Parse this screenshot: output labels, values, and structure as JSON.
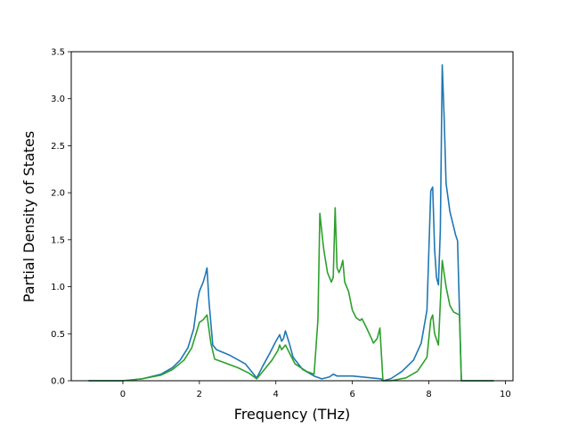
{
  "chart_data": {
    "type": "line",
    "title": "",
    "xlabel": "Frequency (THz)",
    "ylabel": "Partial Density of States",
    "xlim": [
      -1.35,
      10.2
    ],
    "ylim": [
      0,
      3.5
    ],
    "x_ticks": [
      0,
      2,
      4,
      6,
      8,
      10
    ],
    "y_ticks": [
      0.0,
      0.5,
      1.0,
      1.5,
      2.0,
      2.5,
      3.0,
      3.5
    ],
    "x_tick_labels": [
      "0",
      "2",
      "4",
      "6",
      "8",
      "10"
    ],
    "y_tick_labels": [
      "0.0",
      "0.5",
      "1.0",
      "1.5",
      "2.0",
      "2.5",
      "3.0",
      "3.5"
    ],
    "grid": false,
    "legend": "none",
    "series": [
      {
        "color": "#1f77b4",
        "points": [
          [
            -0.9,
            0
          ],
          [
            0.0,
            0.0
          ],
          [
            0.5,
            0.02
          ],
          [
            1.0,
            0.07
          ],
          [
            1.3,
            0.14
          ],
          [
            1.5,
            0.22
          ],
          [
            1.7,
            0.35
          ],
          [
            1.85,
            0.55
          ],
          [
            1.95,
            0.85
          ],
          [
            2.0,
            0.95
          ],
          [
            2.1,
            1.05
          ],
          [
            2.15,
            1.12
          ],
          [
            2.2,
            1.2
          ],
          [
            2.25,
            0.85
          ],
          [
            2.35,
            0.38
          ],
          [
            2.45,
            0.33
          ],
          [
            2.8,
            0.27
          ],
          [
            3.2,
            0.18
          ],
          [
            3.5,
            0.03
          ],
          [
            3.65,
            0.15
          ],
          [
            3.85,
            0.3
          ],
          [
            4.0,
            0.42
          ],
          [
            4.1,
            0.49
          ],
          [
            4.15,
            0.42
          ],
          [
            4.2,
            0.45
          ],
          [
            4.25,
            0.53
          ],
          [
            4.35,
            0.4
          ],
          [
            4.45,
            0.25
          ],
          [
            4.7,
            0.12
          ],
          [
            5.0,
            0.05
          ],
          [
            5.2,
            0.02
          ],
          [
            5.4,
            0.04
          ],
          [
            5.5,
            0.07
          ],
          [
            5.6,
            0.05
          ],
          [
            6.0,
            0.05
          ],
          [
            6.5,
            0.03
          ],
          [
            6.75,
            0.02
          ],
          [
            6.8,
            0
          ],
          [
            7.0,
            0.02
          ],
          [
            7.3,
            0.1
          ],
          [
            7.6,
            0.22
          ],
          [
            7.8,
            0.4
          ],
          [
            7.95,
            0.75
          ],
          [
            8.05,
            2.02
          ],
          [
            8.1,
            2.06
          ],
          [
            8.15,
            1.4
          ],
          [
            8.2,
            1.1
          ],
          [
            8.25,
            1.02
          ],
          [
            8.3,
            1.6
          ],
          [
            8.35,
            3.36
          ],
          [
            8.4,
            2.8
          ],
          [
            8.45,
            2.1
          ],
          [
            8.55,
            1.8
          ],
          [
            8.7,
            1.55
          ],
          [
            8.75,
            1.49
          ],
          [
            8.85,
            0
          ],
          [
            9.7,
            0
          ]
        ]
      },
      {
        "color": "#2ca02c",
        "points": [
          [
            -0.9,
            0
          ],
          [
            0.0,
            0.0
          ],
          [
            0.5,
            0.02
          ],
          [
            1.0,
            0.06
          ],
          [
            1.3,
            0.12
          ],
          [
            1.6,
            0.22
          ],
          [
            1.8,
            0.35
          ],
          [
            1.95,
            0.55
          ],
          [
            2.0,
            0.62
          ],
          [
            2.1,
            0.65
          ],
          [
            2.2,
            0.7
          ],
          [
            2.3,
            0.4
          ],
          [
            2.4,
            0.23
          ],
          [
            2.6,
            0.2
          ],
          [
            3.0,
            0.14
          ],
          [
            3.3,
            0.08
          ],
          [
            3.5,
            0.02
          ],
          [
            3.7,
            0.12
          ],
          [
            3.9,
            0.22
          ],
          [
            4.05,
            0.32
          ],
          [
            4.1,
            0.38
          ],
          [
            4.15,
            0.33
          ],
          [
            4.25,
            0.38
          ],
          [
            4.35,
            0.3
          ],
          [
            4.5,
            0.18
          ],
          [
            4.8,
            0.1
          ],
          [
            5.0,
            0.07
          ],
          [
            5.1,
            0.65
          ],
          [
            5.15,
            1.78
          ],
          [
            5.25,
            1.4
          ],
          [
            5.35,
            1.15
          ],
          [
            5.45,
            1.05
          ],
          [
            5.5,
            1.1
          ],
          [
            5.55,
            1.84
          ],
          [
            5.6,
            1.2
          ],
          [
            5.65,
            1.15
          ],
          [
            5.7,
            1.2
          ],
          [
            5.75,
            1.28
          ],
          [
            5.8,
            1.05
          ],
          [
            5.9,
            0.95
          ],
          [
            6.0,
            0.75
          ],
          [
            6.1,
            0.67
          ],
          [
            6.2,
            0.64
          ],
          [
            6.25,
            0.66
          ],
          [
            6.35,
            0.58
          ],
          [
            6.5,
            0.45
          ],
          [
            6.55,
            0.4
          ],
          [
            6.65,
            0.45
          ],
          [
            6.72,
            0.56
          ],
          [
            6.8,
            0
          ],
          [
            7.0,
            0
          ],
          [
            7.4,
            0.03
          ],
          [
            7.7,
            0.1
          ],
          [
            7.95,
            0.25
          ],
          [
            8.05,
            0.65
          ],
          [
            8.1,
            0.7
          ],
          [
            8.15,
            0.5
          ],
          [
            8.25,
            0.38
          ],
          [
            8.35,
            1.28
          ],
          [
            8.45,
            1.0
          ],
          [
            8.55,
            0.8
          ],
          [
            8.65,
            0.73
          ],
          [
            8.8,
            0.7
          ],
          [
            8.85,
            0
          ],
          [
            9.7,
            0
          ]
        ]
      }
    ]
  }
}
